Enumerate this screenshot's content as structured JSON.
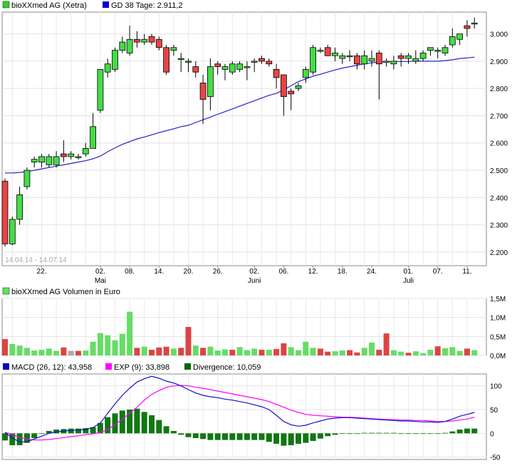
{
  "chart_data": [
    {
      "type": "candlestick",
      "legend": [
        {
          "label": "bioXXmed AG (Xetra)",
          "color": "#33cc33"
        },
        {
          "label": "GD 38 Tage: 2.911,2",
          "color": "#0000cc"
        }
      ],
      "date_range": "14.04.14 - 14.07.14",
      "ylim": [
        2150,
        3080
      ],
      "y_ticks": [
        "2.200",
        "2.300",
        "2.400",
        "2.500",
        "2.600",
        "2.700",
        "2.800",
        "2.900",
        "3.000"
      ],
      "y_tick_values": [
        2200,
        2300,
        2400,
        2500,
        2600,
        2700,
        2800,
        2900,
        3000
      ],
      "x_day_ticks": [
        {
          "label": "22.",
          "index": 5
        },
        {
          "label": "02.",
          "index": 13
        },
        {
          "label": "08.",
          "index": 17
        },
        {
          "label": "14.",
          "index": 21
        },
        {
          "label": "20.",
          "index": 25
        },
        {
          "label": "26.",
          "index": 29
        },
        {
          "label": "02.",
          "index": 34
        },
        {
          "label": "06.",
          "index": 38
        },
        {
          "label": "12.",
          "index": 42
        },
        {
          "label": "18.",
          "index": 46
        },
        {
          "label": "24.",
          "index": 50
        },
        {
          "label": "01.",
          "index": 55
        },
        {
          "label": "07.",
          "index": 59
        },
        {
          "label": "11.",
          "index": 63
        }
      ],
      "x_month_labels": [
        {
          "label": "Mai",
          "index": 13
        },
        {
          "label": "Juni",
          "index": 34
        },
        {
          "label": "Juli",
          "index": 55
        }
      ],
      "ohlc": [
        [
          2460,
          2470,
          2220,
          2230
        ],
        [
          2230,
          2330,
          2225,
          2320
        ],
        [
          2320,
          2440,
          2300,
          2410
        ],
        [
          2440,
          2510,
          2430,
          2500
        ],
        [
          2530,
          2550,
          2510,
          2540
        ],
        [
          2530,
          2560,
          2510,
          2550
        ],
        [
          2520,
          2560,
          2510,
          2550
        ],
        [
          2520,
          2570,
          2510,
          2550
        ],
        [
          2560,
          2610,
          2530,
          2550
        ],
        [
          2550,
          2570,
          2540,
          2560
        ],
        [
          2550,
          2560,
          2540,
          2550
        ],
        [
          2560,
          2600,
          2550,
          2580
        ],
        [
          2580,
          2710,
          2580,
          2660
        ],
        [
          2720,
          2870,
          2710,
          2870
        ],
        [
          2860,
          2910,
          2840,
          2890
        ],
        [
          2870,
          2950,
          2860,
          2940
        ],
        [
          2940,
          2990,
          2930,
          2970
        ],
        [
          2930,
          3030,
          2920,
          2980
        ],
        [
          2980,
          3010,
          2950,
          2970
        ],
        [
          2970,
          3000,
          2960,
          2980
        ],
        [
          2990,
          3000,
          2960,
          2970
        ],
        [
          2980,
          2990,
          2940,
          2950
        ],
        [
          2950,
          2960,
          2850,
          2860
        ],
        [
          2940,
          2960,
          2920,
          2950
        ],
        [
          2910,
          2930,
          2860,
          2910
        ],
        [
          2900,
          2910,
          2860,
          2900
        ],
        [
          2880,
          2900,
          2840,
          2860
        ],
        [
          2820,
          2850,
          2670,
          2760
        ],
        [
          2770,
          2910,
          2720,
          2880
        ],
        [
          2890,
          2900,
          2850,
          2880
        ],
        [
          2870,
          2890,
          2830,
          2880
        ],
        [
          2860,
          2900,
          2850,
          2890
        ],
        [
          2870,
          2900,
          2860,
          2890
        ],
        [
          2880,
          2900,
          2830,
          2880
        ],
        [
          2900,
          2910,
          2860,
          2900
        ],
        [
          2910,
          2920,
          2890,
          2900
        ],
        [
          2900,
          2910,
          2880,
          2890
        ],
        [
          2870,
          2890,
          2800,
          2840
        ],
        [
          2850,
          2850,
          2700,
          2770
        ],
        [
          2790,
          2800,
          2720,
          2780
        ],
        [
          2800,
          2820,
          2790,
          2810
        ],
        [
          2840,
          2880,
          2820,
          2870
        ],
        [
          2860,
          2960,
          2850,
          2950
        ],
        [
          2940,
          2950,
          2930,
          2940
        ],
        [
          2950,
          2960,
          2920,
          2920
        ],
        [
          2920,
          2950,
          2900,
          2930
        ],
        [
          2910,
          2930,
          2890,
          2920
        ],
        [
          2920,
          2940,
          2900,
          2920
        ],
        [
          2920,
          2930,
          2870,
          2890
        ],
        [
          2890,
          2940,
          2870,
          2920
        ],
        [
          2900,
          2940,
          2880,
          2910
        ],
        [
          2930,
          2940,
          2760,
          2890
        ],
        [
          2900,
          2910,
          2880,
          2900
        ],
        [
          2890,
          2920,
          2870,
          2900
        ],
        [
          2920,
          2930,
          2880,
          2910
        ],
        [
          2910,
          2930,
          2890,
          2920
        ],
        [
          2900,
          2940,
          2890,
          2910
        ],
        [
          2910,
          2940,
          2900,
          2930
        ],
        [
          2940,
          2950,
          2920,
          2950
        ],
        [
          2940,
          2950,
          2910,
          2940
        ],
        [
          2930,
          2960,
          2920,
          2950
        ],
        [
          2960,
          3020,
          2950,
          2990
        ],
        [
          2980,
          3000,
          2960,
          3000
        ],
        [
          3030,
          3050,
          2990,
          3020
        ],
        [
          3040,
          3060,
          3020,
          3040
        ]
      ],
      "gd38": [
        2490,
        2490,
        2492,
        2495,
        2500,
        2505,
        2510,
        2515,
        2520,
        2525,
        2530,
        2535,
        2542,
        2552,
        2568,
        2582,
        2595,
        2605,
        2615,
        2622,
        2630,
        2638,
        2645,
        2652,
        2660,
        2665,
        2675,
        2685,
        2695,
        2705,
        2715,
        2725,
        2735,
        2745,
        2755,
        2765,
        2775,
        2782,
        2795,
        2810,
        2825,
        2835,
        2845,
        2852,
        2860,
        2868,
        2875,
        2880,
        2885,
        2890,
        2894,
        2897,
        2899,
        2899,
        2899,
        2899,
        2900,
        2900,
        2900,
        2900,
        2902,
        2905,
        2910,
        2912,
        2915
      ]
    },
    {
      "type": "bar",
      "legend": [
        {
          "label": "bioXXmed AG Volumen in Euro",
          "color": "#66dd66"
        }
      ],
      "ylim": [
        0,
        1500000
      ],
      "y_ticks": [
        "0,0M",
        "0,5M",
        "1,0M",
        "1,5M"
      ],
      "y_tick_values": [
        0,
        500000,
        1000000,
        1500000
      ],
      "values": [
        430000,
        300000,
        260000,
        200000,
        130000,
        150000,
        180000,
        120000,
        210000,
        120000,
        120000,
        130000,
        360000,
        590000,
        530000,
        400000,
        570000,
        1150000,
        200000,
        230000,
        150000,
        210000,
        230000,
        180000,
        200000,
        750000,
        260000,
        200000,
        230000,
        130000,
        160000,
        150000,
        220000,
        140000,
        180000,
        150000,
        150000,
        170000,
        320000,
        220000,
        140000,
        360000,
        200000,
        180000,
        100000,
        110000,
        130000,
        140000,
        80000,
        200000,
        340000,
        150000,
        580000,
        140000,
        100000,
        70000,
        110000,
        60000,
        150000,
        240000,
        190000,
        220000,
        120000,
        180000,
        140000
      ],
      "colors": [
        "#dd4444",
        "#66dd66",
        "#66dd66",
        "#66dd66",
        "#66dd66",
        "#66dd66",
        "#66dd66",
        "#66dd66",
        "#dd4444",
        "#aaaaaa",
        "#dd4444",
        "#66dd66",
        "#66dd66",
        "#66dd66",
        "#66dd66",
        "#66dd66",
        "#66dd66",
        "#66dd66",
        "#dd4444",
        "#66dd66",
        "#dd4444",
        "#dd4444",
        "#dd4444",
        "#66dd66",
        "#dd4444",
        "#dd4444",
        "#66dd66",
        "#dd4444",
        "#66dd66",
        "#66dd66",
        "#66dd66",
        "#dd4444",
        "#66dd66",
        "#66dd66",
        "#66dd66",
        "#dd4444",
        "#66dd66",
        "#dd4444",
        "#dd4444",
        "#66dd66",
        "#66dd66",
        "#66dd66",
        "#66dd66",
        "#dd4444",
        "#dd4444",
        "#66dd66",
        "#66dd66",
        "#dd4444",
        "#dd4444",
        "#66dd66",
        "#66dd66",
        "#dd4444",
        "#dd4444",
        "#66dd66",
        "#66dd66",
        "#dd4444",
        "#66dd66",
        "#66dd66",
        "#66dd66",
        "#dd4444",
        "#66dd66",
        "#66dd66",
        "#66dd66",
        "#dd4444",
        "#66dd66"
      ]
    },
    {
      "type": "line",
      "legend": [
        {
          "label": "MACD (26, 12): 43,958",
          "color": "#0000cc"
        },
        {
          "label": "EXP (9): 33,898",
          "color": "#ff00ff"
        },
        {
          "label": "Divergence: 10,059",
          "color": "#006600"
        }
      ],
      "ylim": [
        -55,
        125
      ],
      "y_ticks": [
        "-50",
        "0",
        "50",
        "100"
      ],
      "y_tick_values": [
        -50,
        0,
        50,
        100
      ],
      "series": [
        {
          "values": [
            2,
            -10,
            -18,
            -18,
            -12,
            -6,
            0,
            3,
            5,
            6,
            7,
            8,
            12,
            22,
            42,
            62,
            80,
            95,
            108,
            115,
            120,
            116,
            110,
            106,
            100,
            92,
            85,
            80,
            77,
            75,
            72,
            70,
            67,
            64,
            60,
            56,
            50,
            38,
            25,
            18,
            15,
            17,
            22,
            26,
            30,
            32,
            33,
            33,
            32,
            31,
            30,
            29,
            28,
            27,
            26,
            26,
            25,
            24,
            24,
            23,
            25,
            30,
            36,
            40,
            44
          ]
        },
        {
          "values": [
            2,
            -2,
            -8,
            -12,
            -14,
            -14,
            -13,
            -11,
            -9,
            -7,
            -5,
            -3,
            -1,
            2,
            8,
            18,
            30,
            42,
            55,
            70,
            82,
            90,
            97,
            100,
            101,
            100,
            97,
            95,
            92,
            89,
            86,
            83,
            80,
            77,
            74,
            71,
            67,
            61,
            55,
            49,
            44,
            40,
            38,
            37,
            36,
            35,
            34,
            34,
            33,
            32,
            31,
            30,
            29,
            29,
            28,
            28,
            27,
            27,
            26,
            25,
            25,
            26,
            28,
            30,
            34
          ]
        },
        {
          "type": "bar",
          "values": [
            -15,
            -25,
            -25,
            -20,
            -10,
            0,
            5,
            8,
            9,
            10,
            10,
            11,
            13,
            22,
            34,
            42,
            48,
            50,
            52,
            45,
            38,
            28,
            15,
            5,
            -3,
            -8,
            -10,
            -12,
            -14,
            -14,
            -14,
            -14,
            -14,
            -14,
            -14,
            -14,
            -18,
            -22,
            -26,
            -25,
            -22,
            -20,
            -16,
            -11,
            -6,
            -3,
            -1,
            0,
            0,
            1,
            1,
            1,
            1,
            1,
            0,
            0,
            0,
            0,
            0,
            0,
            1,
            4,
            8,
            10,
            10
          ]
        }
      ]
    }
  ]
}
